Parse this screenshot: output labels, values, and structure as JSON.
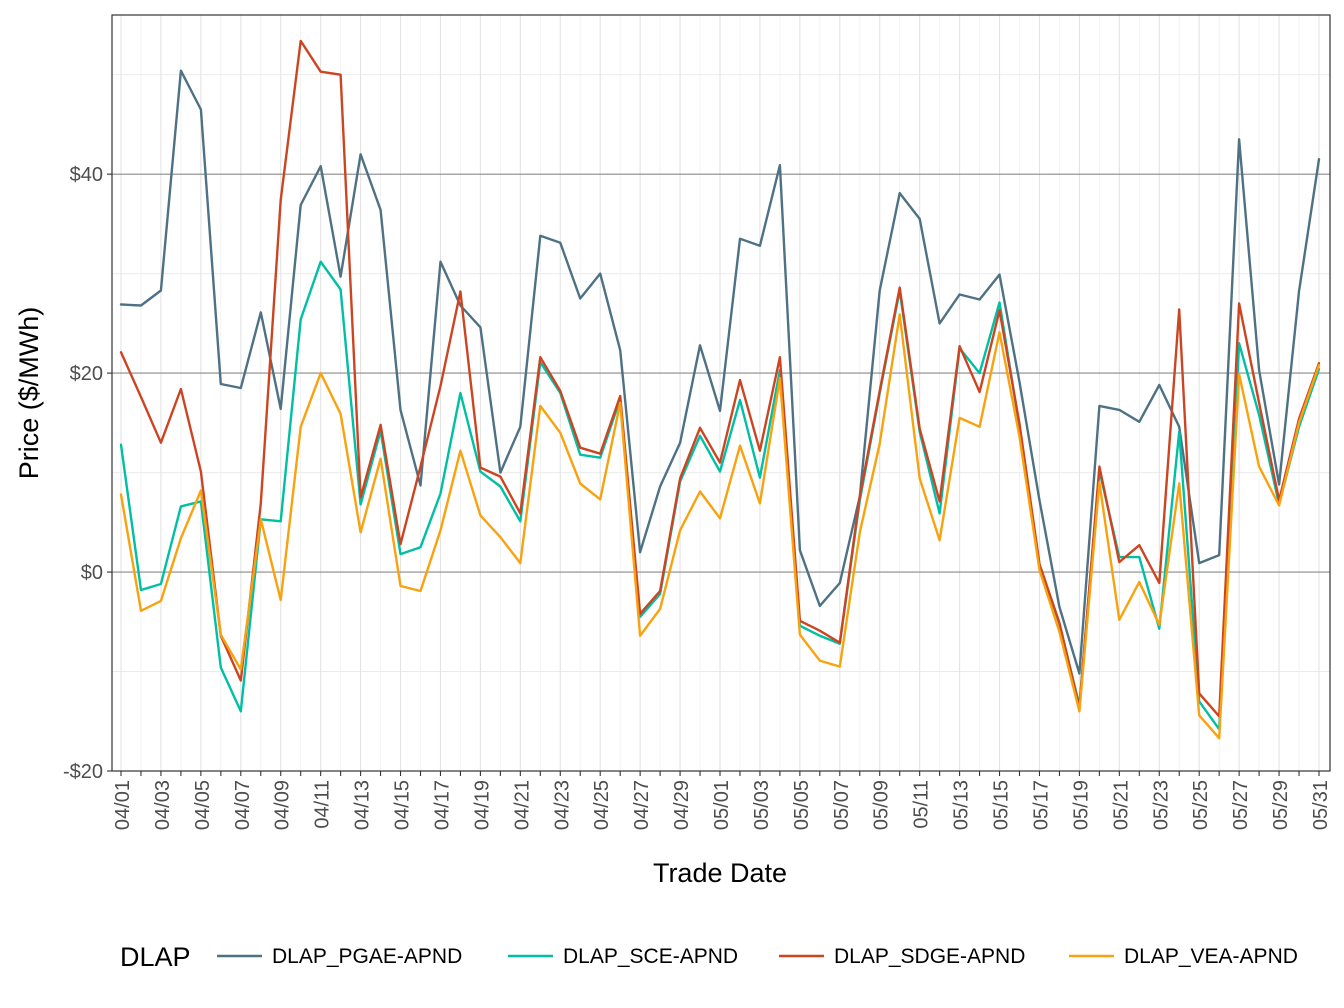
{
  "chart_data": {
    "type": "line",
    "xlabel": "Trade Date",
    "ylabel": "Price ($/MWh)",
    "ylim": [
      -20,
      56
    ],
    "y_ticks": [
      -20,
      0,
      20,
      40
    ],
    "y_tick_labels": [
      "-$20",
      "$0",
      "$20",
      "$40"
    ],
    "x": [
      "04/01",
      "04/02",
      "04/03",
      "04/04",
      "04/05",
      "04/06",
      "04/07",
      "04/08",
      "04/09",
      "04/10",
      "04/11",
      "04/12",
      "04/13",
      "04/14",
      "04/15",
      "04/16",
      "04/17",
      "04/18",
      "04/19",
      "04/20",
      "04/21",
      "04/22",
      "04/23",
      "04/24",
      "04/25",
      "04/26",
      "04/27",
      "04/28",
      "04/29",
      "04/30",
      "05/01",
      "05/02",
      "05/03",
      "05/04",
      "05/05",
      "05/06",
      "05/07",
      "05/08",
      "05/09",
      "05/10",
      "05/11",
      "05/12",
      "05/13",
      "05/14",
      "05/15",
      "05/16",
      "05/17",
      "05/18",
      "05/19",
      "05/20",
      "05/21",
      "05/22",
      "05/23",
      "05/24",
      "05/25",
      "05/26",
      "05/27",
      "05/28",
      "05/29",
      "05/30",
      "05/31"
    ],
    "x_tick_labels": [
      "04/01",
      "04/03",
      "04/05",
      "04/07",
      "04/09",
      "04/11",
      "04/13",
      "04/15",
      "04/17",
      "04/19",
      "04/21",
      "04/23",
      "04/25",
      "04/27",
      "04/29",
      "05/01",
      "05/03",
      "05/05",
      "05/07",
      "05/09",
      "05/11",
      "05/13",
      "05/15",
      "05/17",
      "05/19",
      "05/21",
      "05/23",
      "05/25",
      "05/27",
      "05/29",
      "05/31"
    ],
    "grid": true,
    "legend": {
      "title": "DLAP",
      "position": "bottom"
    },
    "series": [
      {
        "name": "DLAP_PGAE-APND",
        "color": "#4e7184",
        "values": [
          26.9,
          26.8,
          28.3,
          50.4,
          46.5,
          18.9,
          18.5,
          26.1,
          16.4,
          36.9,
          40.8,
          29.7,
          42.0,
          36.4,
          16.3,
          8.7,
          31.2,
          26.8,
          24.6,
          10.0,
          14.6,
          33.8,
          33.1,
          27.5,
          30.0,
          22.3,
          2.0,
          8.6,
          13.0,
          22.8,
          16.2,
          33.5,
          32.8,
          40.9,
          2.2,
          -3.4,
          -1.1,
          7.6,
          28.3,
          38.1,
          35.5,
          25.0,
          27.9,
          27.4,
          29.9,
          19.1,
          7.2,
          -3.5,
          -10.2,
          16.7,
          16.3,
          15.1,
          18.8,
          14.6,
          0.9,
          1.7,
          43.5,
          20.3,
          8.8,
          28.2,
          41.5
        ]
      },
      {
        "name": "DLAP_SCE-APND",
        "color": "#00bfa5",
        "values": [
          12.8,
          -1.8,
          -1.2,
          6.6,
          7.1,
          -9.6,
          -14.0,
          5.3,
          5.1,
          25.4,
          31.2,
          28.4,
          6.8,
          14.2,
          1.8,
          2.5,
          7.9,
          18.0,
          10.1,
          8.6,
          5.1,
          21.1,
          18.0,
          11.8,
          11.5,
          17.4,
          -4.5,
          -2.2,
          9.1,
          13.7,
          10.1,
          17.3,
          9.5,
          20.3,
          -5.4,
          -6.4,
          -7.2,
          7.2,
          18.0,
          28.3,
          14.1,
          5.9,
          22.5,
          20.0,
          27.1,
          14.6,
          0.7,
          -5.2,
          -13.4,
          10.2,
          1.5,
          1.5,
          -5.7,
          14.1,
          -13.0,
          -15.8,
          23.0,
          15.8,
          6.8,
          14.6,
          20.4
        ]
      },
      {
        "name": "DLAP_SDGE-APND",
        "color": "#cc4522",
        "values": [
          22.1,
          17.6,
          13.0,
          18.4,
          10.1,
          -6.4,
          -10.9,
          6.9,
          37.4,
          53.4,
          50.3,
          50.0,
          7.5,
          14.8,
          2.8,
          10.6,
          18.7,
          28.2,
          10.5,
          9.6,
          5.9,
          21.6,
          18.2,
          12.5,
          11.9,
          17.7,
          -4.2,
          -1.9,
          9.4,
          14.5,
          11.0,
          19.3,
          12.2,
          21.6,
          -4.9,
          -5.9,
          -7.1,
          7.6,
          18.2,
          28.6,
          14.4,
          7.1,
          22.7,
          18.1,
          26.3,
          14.9,
          0.8,
          -5.1,
          -13.6,
          10.6,
          1.0,
          2.7,
          -1.1,
          26.4,
          -12.2,
          -14.5,
          27.0,
          17.0,
          7.2,
          15.4,
          21.0
        ]
      },
      {
        "name": "DLAP_VEA-APND",
        "color": "#f9a20f",
        "values": [
          7.8,
          -3.9,
          -2.9,
          3.4,
          8.2,
          -6.3,
          -9.8,
          5.3,
          -2.8,
          14.6,
          20.0,
          15.9,
          4.0,
          11.4,
          -1.4,
          -1.9,
          4.2,
          12.2,
          5.7,
          3.5,
          0.9,
          16.7,
          14.0,
          8.9,
          7.3,
          17.0,
          -6.4,
          -3.7,
          4.2,
          8.1,
          5.4,
          12.7,
          6.9,
          19.5,
          -6.3,
          -8.9,
          -9.5,
          4.0,
          12.9,
          25.9,
          9.4,
          3.2,
          15.5,
          14.6,
          24.1,
          13.6,
          0.2,
          -6.0,
          -14.0,
          9.0,
          -4.8,
          -1.0,
          -5.3,
          8.9,
          -14.4,
          -16.7,
          19.9,
          10.6,
          6.7,
          15.0,
          20.8
        ]
      }
    ]
  }
}
